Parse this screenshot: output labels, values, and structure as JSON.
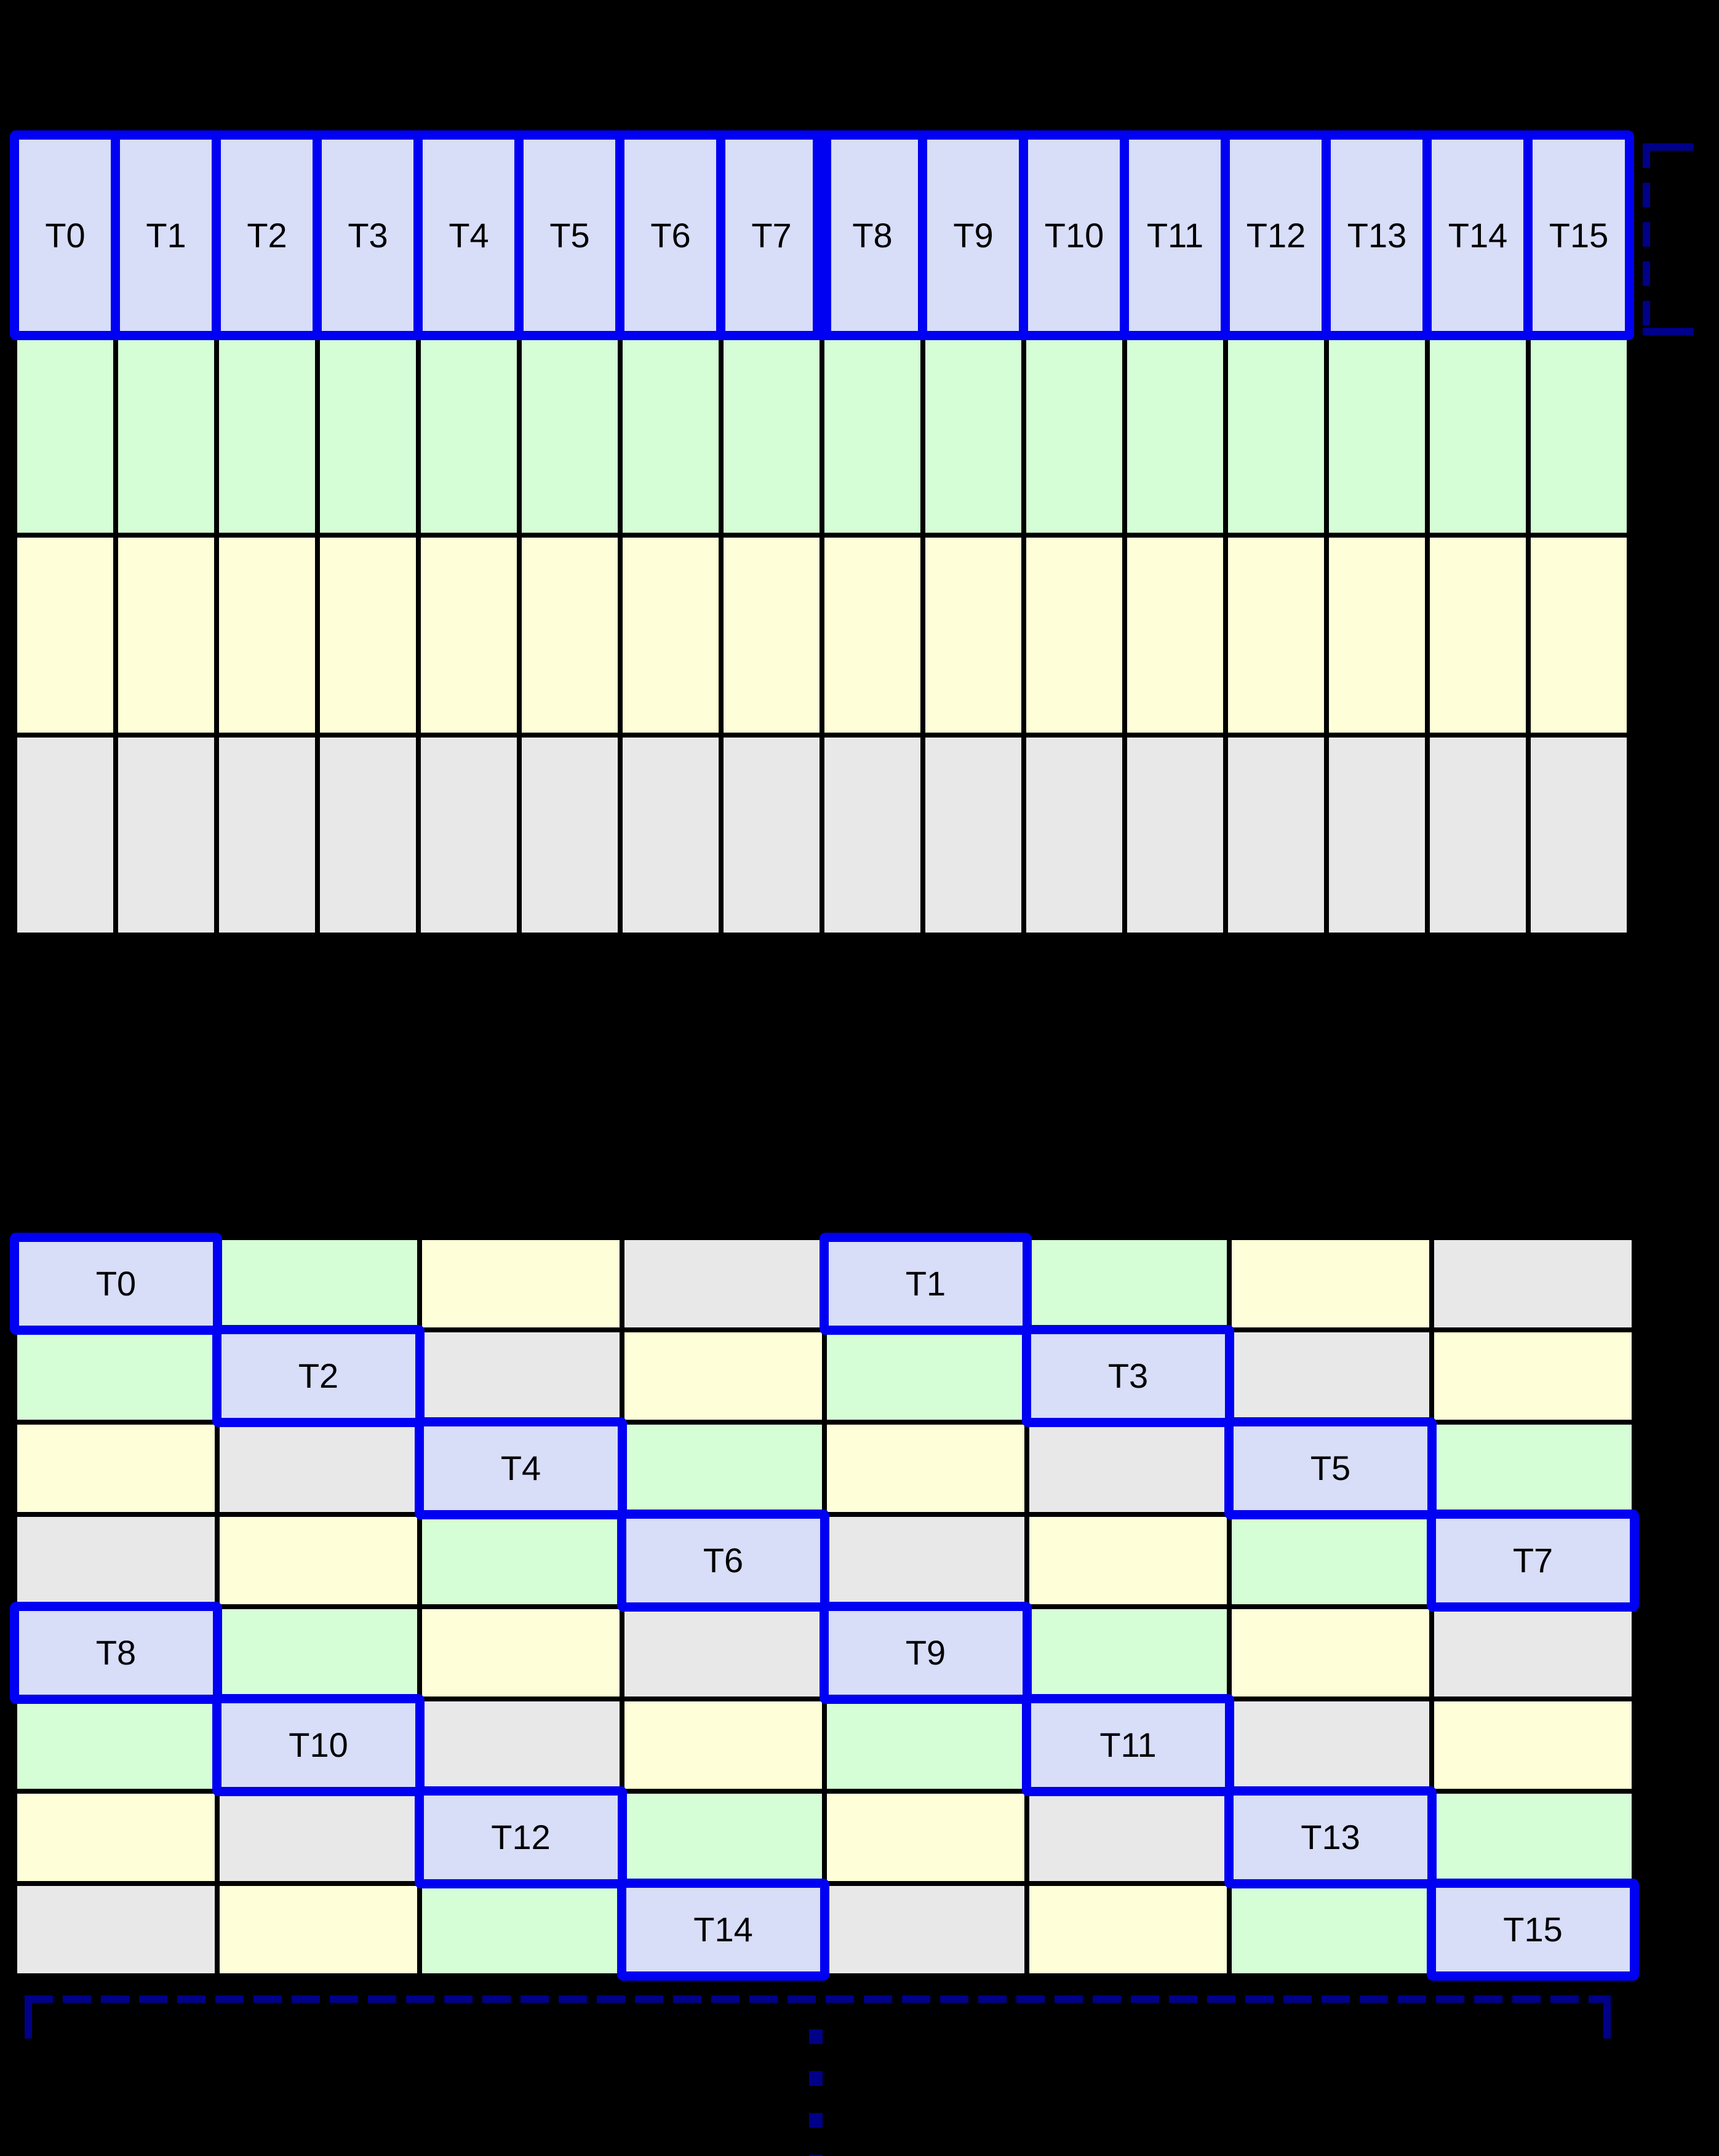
{
  "colors": {
    "background": "#000000",
    "cell-border": "#000000",
    "thread-fill": "#d8ddf8",
    "green-fill": "#d5fdd6",
    "yellow-fill": "#feffd8",
    "gray-fill": "#e8e8e9",
    "highlight": "#0000f2",
    "bracket": "#000088",
    "label-text": "#000000"
  },
  "top_grid": {
    "rows": 4,
    "columns": 16,
    "row_fills": [
      "thread",
      "green",
      "yellow",
      "gray"
    ],
    "thread_labels": [
      "T0",
      "T1",
      "T2",
      "T3",
      "T4",
      "T5",
      "T6",
      "T7",
      "T8",
      "T9",
      "T10",
      "T11",
      "T12",
      "T13",
      "T14",
      "T15"
    ],
    "thread_groups": [
      {
        "first": "T0",
        "last": "T7"
      },
      {
        "first": "T8",
        "last": "T15"
      }
    ]
  },
  "bottom_grid": {
    "rows": 8,
    "columns": 8,
    "cell_fills": [
      [
        "thread",
        "green",
        "yellow",
        "gray",
        "thread",
        "green",
        "yellow",
        "gray"
      ],
      [
        "green",
        "thread",
        "gray",
        "yellow",
        "green",
        "thread",
        "gray",
        "yellow"
      ],
      [
        "yellow",
        "gray",
        "thread",
        "green",
        "yellow",
        "gray",
        "thread",
        "green"
      ],
      [
        "gray",
        "yellow",
        "green",
        "thread",
        "gray",
        "yellow",
        "green",
        "thread"
      ],
      [
        "thread",
        "green",
        "yellow",
        "gray",
        "thread",
        "green",
        "yellow",
        "gray"
      ],
      [
        "green",
        "thread",
        "gray",
        "yellow",
        "green",
        "thread",
        "gray",
        "yellow"
      ],
      [
        "yellow",
        "gray",
        "thread",
        "green",
        "yellow",
        "gray",
        "thread",
        "green"
      ],
      [
        "gray",
        "yellow",
        "green",
        "thread",
        "gray",
        "yellow",
        "green",
        "thread"
      ]
    ],
    "cell_labels": [
      [
        "T0",
        "",
        "",
        "",
        "T1",
        "",
        "",
        ""
      ],
      [
        "",
        "T2",
        "",
        "",
        "",
        "T3",
        "",
        ""
      ],
      [
        "",
        "",
        "T4",
        "",
        "",
        "",
        "T5",
        ""
      ],
      [
        "",
        "",
        "",
        "T6",
        "",
        "",
        "",
        "T7"
      ],
      [
        "T8",
        "",
        "",
        "",
        "T9",
        "",
        "",
        ""
      ],
      [
        "",
        "T10",
        "",
        "",
        "",
        "T11",
        "",
        ""
      ],
      [
        "",
        "",
        "T12",
        "",
        "",
        "",
        "T13",
        ""
      ],
      [
        "",
        "",
        "",
        "T14",
        "",
        "",
        "",
        "T15"
      ]
    ]
  },
  "annotations": {
    "right_bracket_style": "dashed",
    "bottom_bracket_style": "dashed",
    "continuation_dots": 4
  }
}
